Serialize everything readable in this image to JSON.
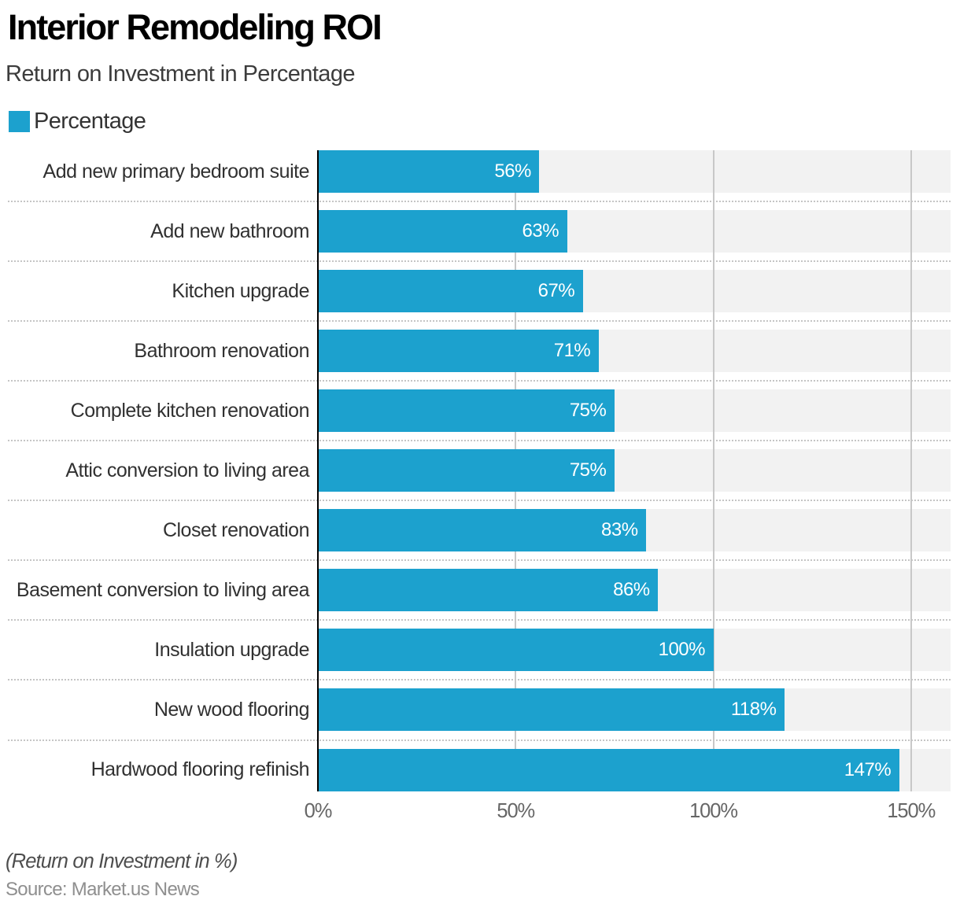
{
  "header": {
    "title": "Interior Remodeling ROI",
    "subtitle": "Return on Investment in Percentage"
  },
  "legend": {
    "label": "Percentage"
  },
  "chart_data": {
    "type": "bar",
    "orientation": "horizontal",
    "title": "Interior Remodeling ROI",
    "subtitle": "Return on Investment in Percentage",
    "series_name": "Percentage",
    "categories": [
      "Add new primary bedroom suite",
      "Add new bathroom",
      "Kitchen upgrade",
      "Bathroom renovation",
      "Complete kitchen renovation",
      "Attic conversion to living area",
      "Closet renovation",
      "Basement conversion to living area",
      "Insulation upgrade",
      "New wood flooring",
      "Hardwood flooring refinish"
    ],
    "values": [
      56,
      63,
      67,
      71,
      75,
      75,
      83,
      86,
      100,
      118,
      147
    ],
    "value_suffix": "%",
    "bar_label_position": "inside-end",
    "x_tick_values": [
      0,
      50,
      100,
      150
    ],
    "x_tick_labels": [
      "0%",
      "50%",
      "100%",
      "150%"
    ],
    "xlim": [
      0,
      160
    ],
    "xlabel": "",
    "ylabel": "",
    "legend_position": "top-left",
    "gridlines": "vertical at 50/100/150, dotted horizontal row separators"
  },
  "colors": {
    "bar": "#1CA1CE",
    "track": "#F2F2F2",
    "gridline": "#C8C8C8",
    "separator": "#C5C5C5",
    "axis_line": "#000000",
    "title": "#000000",
    "subtitle": "#3C3C3C",
    "legend_label": "#333333",
    "category_label": "#313131",
    "value_label": "#FFFFFF",
    "tick_label": "#666666",
    "footnote": "#4D4D4D",
    "source": "#8F8F8F"
  },
  "footer": {
    "note": "(Return on Investment in %)",
    "source": "Source: Market.us News"
  }
}
